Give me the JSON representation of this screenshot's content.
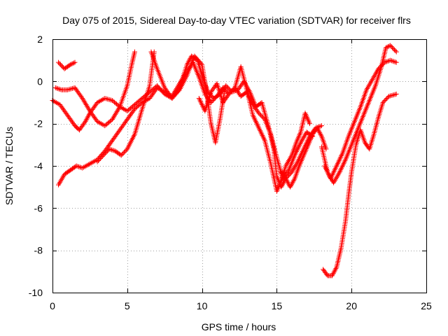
{
  "chart_data": {
    "type": "scatter",
    "title": "Day 075 of 2015, Sidereal Day-to-day VTEC variation (SDTVAR) for receiver flrs",
    "xlabel": "GPS time / hours",
    "ylabel": "SDTVAR / TECUs",
    "xlim": [
      0,
      25
    ],
    "ylim": [
      -10,
      2
    ],
    "x_ticks": [
      "0",
      "5",
      "10",
      "15",
      "20",
      "25"
    ],
    "y_ticks": [
      "-10",
      "-8",
      "-6",
      "-4",
      "-2",
      "0",
      "2"
    ],
    "grid": true,
    "legend": "none",
    "marker": "plus",
    "color": "#ff0000",
    "series": [
      {
        "x": [
          0.0,
          0.5,
          1.0,
          1.5,
          1.8,
          2.2,
          2.5,
          3.0,
          3.5,
          4.0,
          4.5,
          5.0,
          5.5,
          6.0,
          6.5,
          7.0,
          7.5,
          8.0,
          8.5,
          9.0,
          9.3,
          9.7,
          10.0,
          10.4,
          10.8,
          11.2,
          11.6,
          12.0,
          12.4,
          12.8,
          13.2,
          13.6,
          14.0,
          14.4,
          14.8,
          15.0,
          15.3,
          15.6,
          16.0,
          16.4,
          16.8,
          17.2,
          17.6,
          18.0
        ],
        "y": [
          -0.9,
          -1.1,
          -1.6,
          -2.1,
          -2.3,
          -1.9,
          -1.5,
          -1.0,
          -0.8,
          -0.9,
          -1.2,
          -1.4,
          -1.1,
          -0.8,
          -0.5,
          -0.2,
          -0.6,
          -0.8,
          -0.3,
          0.8,
          1.2,
          1.0,
          0.3,
          -0.5,
          -0.8,
          -0.6,
          -0.2,
          -0.5,
          -0.4,
          0.0,
          -0.5,
          -1.2,
          -1.0,
          -2.0,
          -3.2,
          -4.5,
          -5.0,
          -4.6,
          -4.3,
          -3.8,
          -3.2,
          -2.6,
          -2.2,
          -2.1
        ]
      },
      {
        "x": [
          0.4,
          0.8,
          1.2,
          1.6,
          2.0,
          2.5,
          3.0,
          3.5,
          4.0,
          4.5,
          5.0,
          5.5,
          6.0,
          6.5,
          7.0,
          7.5,
          8.0,
          8.5,
          9.0,
          9.4,
          9.8,
          10.2,
          10.6,
          11.0,
          11.4,
          11.8,
          12.2,
          12.6,
          13.0,
          13.4,
          13.8,
          14.2,
          14.6,
          15.0,
          15.4,
          15.8,
          16.2,
          16.6,
          17.0,
          17.4
        ],
        "y": [
          -4.9,
          -4.4,
          -4.2,
          -4.0,
          -4.1,
          -3.9,
          -3.7,
          -3.3,
          -2.8,
          -2.3,
          -1.8,
          -1.3,
          -1.0,
          -0.8,
          -0.3,
          -0.5,
          -0.7,
          -0.1,
          0.5,
          0.9,
          0.2,
          -0.6,
          -1.0,
          -0.7,
          -0.3,
          -0.6,
          -0.3,
          -0.7,
          -0.5,
          -1.1,
          -1.5,
          -1.8,
          -2.5,
          -3.6,
          -4.6,
          -4.2,
          -3.5,
          -2.9,
          -2.4,
          -2.6
        ]
      },
      {
        "x": [
          0.4,
          0.8,
          1.2,
          1.5
        ],
        "y": [
          0.9,
          0.6,
          0.8,
          0.9
        ]
      },
      {
        "x": [
          0.2,
          0.6,
          1.0,
          1.5,
          2.0,
          2.5,
          3.0,
          3.5,
          4.0,
          4.5,
          5.0,
          5.3,
          5.5
        ],
        "y": [
          -0.3,
          -0.4,
          -0.4,
          -0.3,
          -0.8,
          -1.4,
          -1.9,
          -2.1,
          -1.8,
          -1.2,
          -0.2,
          0.8,
          1.4
        ]
      },
      {
        "x": [
          3.0,
          3.4,
          3.8,
          4.2,
          4.6,
          5.0,
          5.5,
          6.0,
          6.5,
          6.8
        ],
        "y": [
          -3.8,
          -3.5,
          -3.2,
          -3.3,
          -3.5,
          -3.2,
          -2.5,
          -1.3,
          -0.2,
          1.4
        ]
      },
      {
        "x": [
          6.6,
          7.0,
          7.5,
          8.0,
          8.5,
          9.0,
          9.5,
          10.0,
          10.3,
          10.6,
          10.9,
          11.2,
          11.5
        ],
        "y": [
          1.4,
          0.6,
          -0.3,
          -0.8,
          -0.4,
          0.3,
          1.2,
          0.8,
          -0.5,
          -2.0,
          -2.9,
          -1.8,
          -0.5
        ]
      },
      {
        "x": [
          9.8,
          10.2,
          10.6,
          11.0,
          11.4,
          11.8,
          12.2,
          12.6,
          13.0,
          13.4,
          13.8,
          14.2,
          14.6,
          15.0,
          15.3,
          15.6,
          16.0,
          16.3,
          16.6,
          16.9,
          17.2
        ],
        "y": [
          -0.8,
          -1.4,
          -0.5,
          -0.1,
          -1.0,
          -0.6,
          -0.3,
          0.7,
          -0.4,
          -1.6,
          -2.2,
          -2.8,
          -3.9,
          -5.2,
          -4.7,
          -4.0,
          -3.5,
          -2.9,
          -2.4,
          -1.5,
          -2.0
        ]
      },
      {
        "x": [
          15.3,
          15.6,
          15.9,
          16.2,
          16.5,
          16.8,
          17.1,
          17.4,
          17.7,
          18.0,
          18.3
        ],
        "y": [
          -4.3,
          -4.6,
          -5.0,
          -4.6,
          -4.0,
          -3.5,
          -3.0,
          -2.5,
          -2.2,
          -2.6,
          -3.2
        ]
      },
      {
        "x": [
          18.0,
          18.4,
          18.8,
          19.2,
          19.6,
          20.0,
          20.4,
          20.8,
          21.2,
          21.6,
          22.0,
          22.3,
          22.6,
          23.0
        ],
        "y": [
          -3.1,
          -4.3,
          -4.8,
          -4.3,
          -3.7,
          -3.0,
          -2.3,
          -1.6,
          -0.9,
          -0.2,
          0.7,
          1.6,
          1.7,
          1.4
        ]
      },
      {
        "x": [
          18.2,
          18.6,
          19.0,
          19.4,
          19.8,
          20.2,
          20.6,
          21.0,
          21.4,
          21.8,
          22.2,
          22.6,
          23.0
        ],
        "y": [
          -4.0,
          -4.6,
          -4.0,
          -3.4,
          -2.6,
          -1.9,
          -1.2,
          -0.4,
          0.1,
          0.6,
          0.9,
          1.0,
          0.9
        ]
      },
      {
        "x": [
          18.1,
          18.4,
          18.7,
          19.0,
          19.3,
          19.6,
          19.8,
          20.0,
          20.3,
          20.6,
          20.9,
          21.2,
          21.5,
          21.8,
          22.1,
          22.5,
          23.0
        ],
        "y": [
          -8.9,
          -9.2,
          -9.2,
          -8.8,
          -7.9,
          -6.6,
          -5.4,
          -4.3,
          -3.0,
          -2.3,
          -2.9,
          -3.2,
          -2.5,
          -1.7,
          -1.0,
          -0.7,
          -0.6
        ]
      }
    ]
  }
}
